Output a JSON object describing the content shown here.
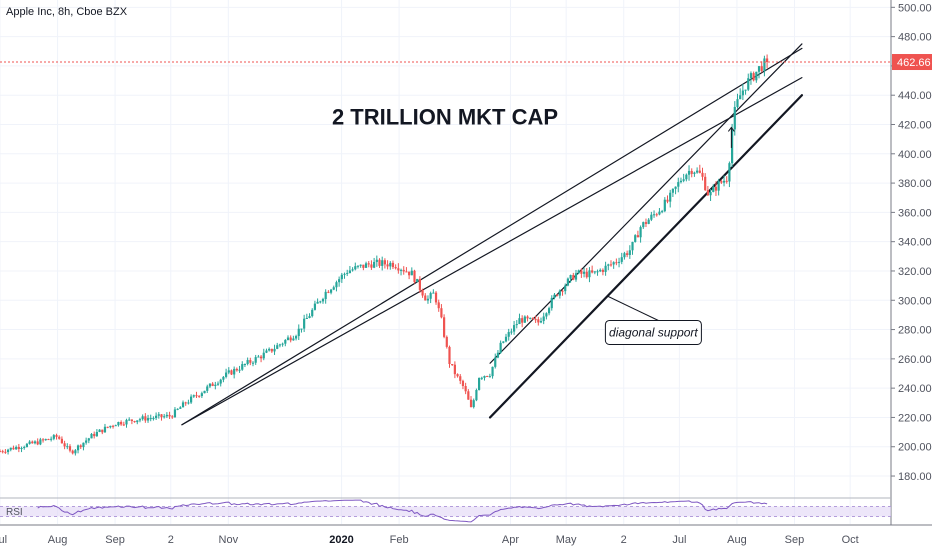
{
  "header": {
    "symbol": "Apple Inc, 8h, Cboe BZX"
  },
  "colors": {
    "up": "#26a69a",
    "down": "#ef5350",
    "last_price_line": "#ef5350",
    "rsi_line": "#7e57c2",
    "rsi_band": "#e1d5f5",
    "grid": "#f0f3fa"
  },
  "chart_data": {
    "type": "candlestick",
    "y_axis": {
      "ticks": [
        180,
        200,
        220,
        240,
        260,
        280,
        300,
        320,
        340,
        360,
        380,
        400,
        420,
        440,
        460,
        480,
        500
      ],
      "tick_labels": [
        "180.00",
        "200.00",
        "220.00",
        "240.00",
        "260.00",
        "280.00",
        "300.00",
        "320.00",
        "340.00",
        "360.00",
        "380.00",
        "400.00",
        "420.00",
        "440.00",
        "460.00",
        "480.00",
        "500.00"
      ],
      "ylim": [
        165,
        505
      ]
    },
    "x_axis": {
      "labels": [
        {
          "text": "Jul",
          "day": 0
        },
        {
          "text": "Aug",
          "day": 31
        },
        {
          "text": "Sep",
          "day": 62
        },
        {
          "text": "2",
          "day": 92
        },
        {
          "text": "Nov",
          "day": 123
        },
        {
          "text": "2020",
          "day": 184,
          "bold": true
        },
        {
          "text": "Feb",
          "day": 215
        },
        {
          "text": "Apr",
          "day": 275
        },
        {
          "text": "May",
          "day": 305
        },
        {
          "text": "2",
          "day": 336
        },
        {
          "text": "Jul",
          "day": 366
        },
        {
          "text": "Aug",
          "day": 397
        },
        {
          "text": "Sep",
          "day": 428
        },
        {
          "text": "Oct",
          "day": 458
        }
      ],
      "day_range": [
        0,
        480
      ]
    },
    "price_anchors": [
      [
        0,
        197
      ],
      [
        20,
        203
      ],
      [
        31,
        207
      ],
      [
        38,
        196
      ],
      [
        50,
        208
      ],
      [
        62,
        216
      ],
      [
        75,
        219
      ],
      [
        92,
        221
      ],
      [
        100,
        230
      ],
      [
        123,
        250
      ],
      [
        145,
        265
      ],
      [
        160,
        278
      ],
      [
        175,
        305
      ],
      [
        187,
        320
      ],
      [
        200,
        325
      ],
      [
        212,
        325
      ],
      [
        222,
        318
      ],
      [
        230,
        300
      ],
      [
        234,
        305
      ],
      [
        238,
        285
      ],
      [
        242,
        258
      ],
      [
        246,
        248
      ],
      [
        250,
        240
      ],
      [
        254,
        225
      ],
      [
        258,
        248
      ],
      [
        264,
        250
      ],
      [
        270,
        270
      ],
      [
        280,
        287
      ],
      [
        290,
        285
      ],
      [
        300,
        305
      ],
      [
        310,
        318
      ],
      [
        320,
        318
      ],
      [
        330,
        325
      ],
      [
        340,
        335
      ],
      [
        345,
        350
      ],
      [
        352,
        358
      ],
      [
        360,
        368
      ],
      [
        368,
        385
      ],
      [
        373,
        390
      ],
      [
        378,
        385
      ],
      [
        382,
        371
      ],
      [
        386,
        378
      ],
      [
        392,
        384
      ],
      [
        395,
        425
      ],
      [
        398,
        438
      ],
      [
        402,
        448
      ],
      [
        405,
        452
      ],
      [
        410,
        460
      ],
      [
        414,
        462.66
      ]
    ],
    "last_price": 462.66,
    "last_price_label": "462.66",
    "trendlines": [
      {
        "from": [
          98,
          215
        ],
        "to": [
          432,
          472
        ],
        "width": 1.2
      },
      {
        "from": [
          98,
          215
        ],
        "to": [
          432,
          452
        ],
        "width": 1.2
      },
      {
        "from": [
          264,
          257
        ],
        "to": [
          432,
          475
        ],
        "width": 1.2
      },
      {
        "from": [
          264,
          220
        ],
        "to": [
          432,
          440
        ],
        "width": 2.2
      }
    ],
    "annotations": [
      {
        "id": "headline",
        "text": "2 TRILLION MKT CAP",
        "at": [
          230,
          420
        ]
      },
      {
        "id": "callout",
        "text": "diagonal support",
        "at": [
          352,
          278
        ]
      }
    ],
    "rsi": {
      "label": "RSI",
      "band": [
        30,
        70
      ]
    }
  }
}
